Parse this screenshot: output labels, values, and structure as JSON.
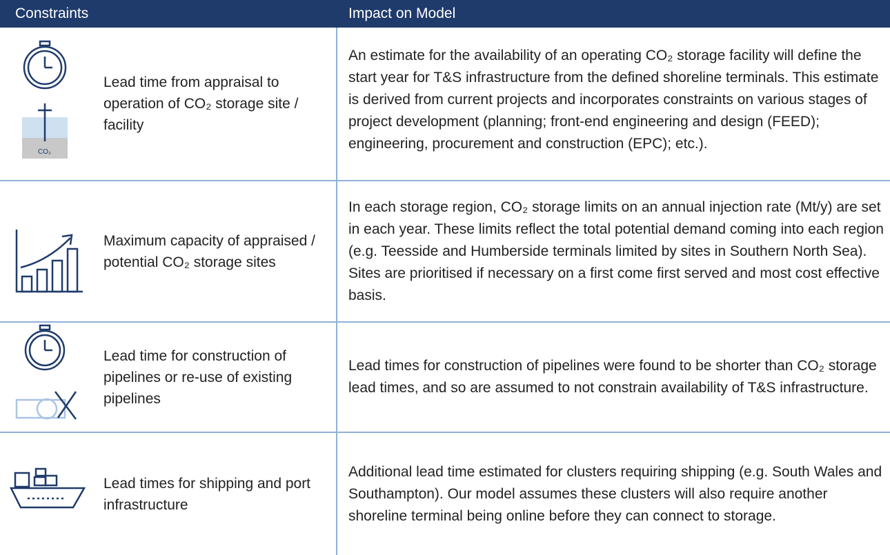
{
  "table": {
    "headers": [
      "Constraints",
      "Impact on Model"
    ],
    "rows": [
      [
        "Lead time from appraisal to operation of CO₂ storage site / facility",
        "An estimate for the availability of an operating CO₂ storage facility will define the start year for T&S infrastructure from the defined shoreline terminals. This estimate is derived from current projects and incorporates constraints on various stages of project development (planning; front-end engineering and design (FEED); engineering, procurement and construction (EPC); etc.)."
      ],
      [
        "Maximum capacity of appraised / potential CO₂ storage sites",
        "In each storage region, CO₂ storage limits on an annual injection rate (Mt/y) are set in each year. These limits reflect the total potential demand coming into each region (e.g. Teesside and Humberside terminals limited by sites in Southern North Sea). Sites are prioritised if necessary on a first come first served and most cost effective basis."
      ],
      [
        "Lead time for construction of pipelines or re-use of existing pipelines",
        "Lead times for construction of pipelines were found to be shorter than CO₂ storage lead times, and so are assumed to not constrain availability of T&S infrastructure."
      ],
      [
        "Lead times for shipping and port infrastructure",
        "Additional lead time estimated for clusters requiring shipping (e.g. South Wales and Southampton). Our model assumes these clusters will also require another shoreline terminal being online before they can connect to storage."
      ]
    ]
  }
}
